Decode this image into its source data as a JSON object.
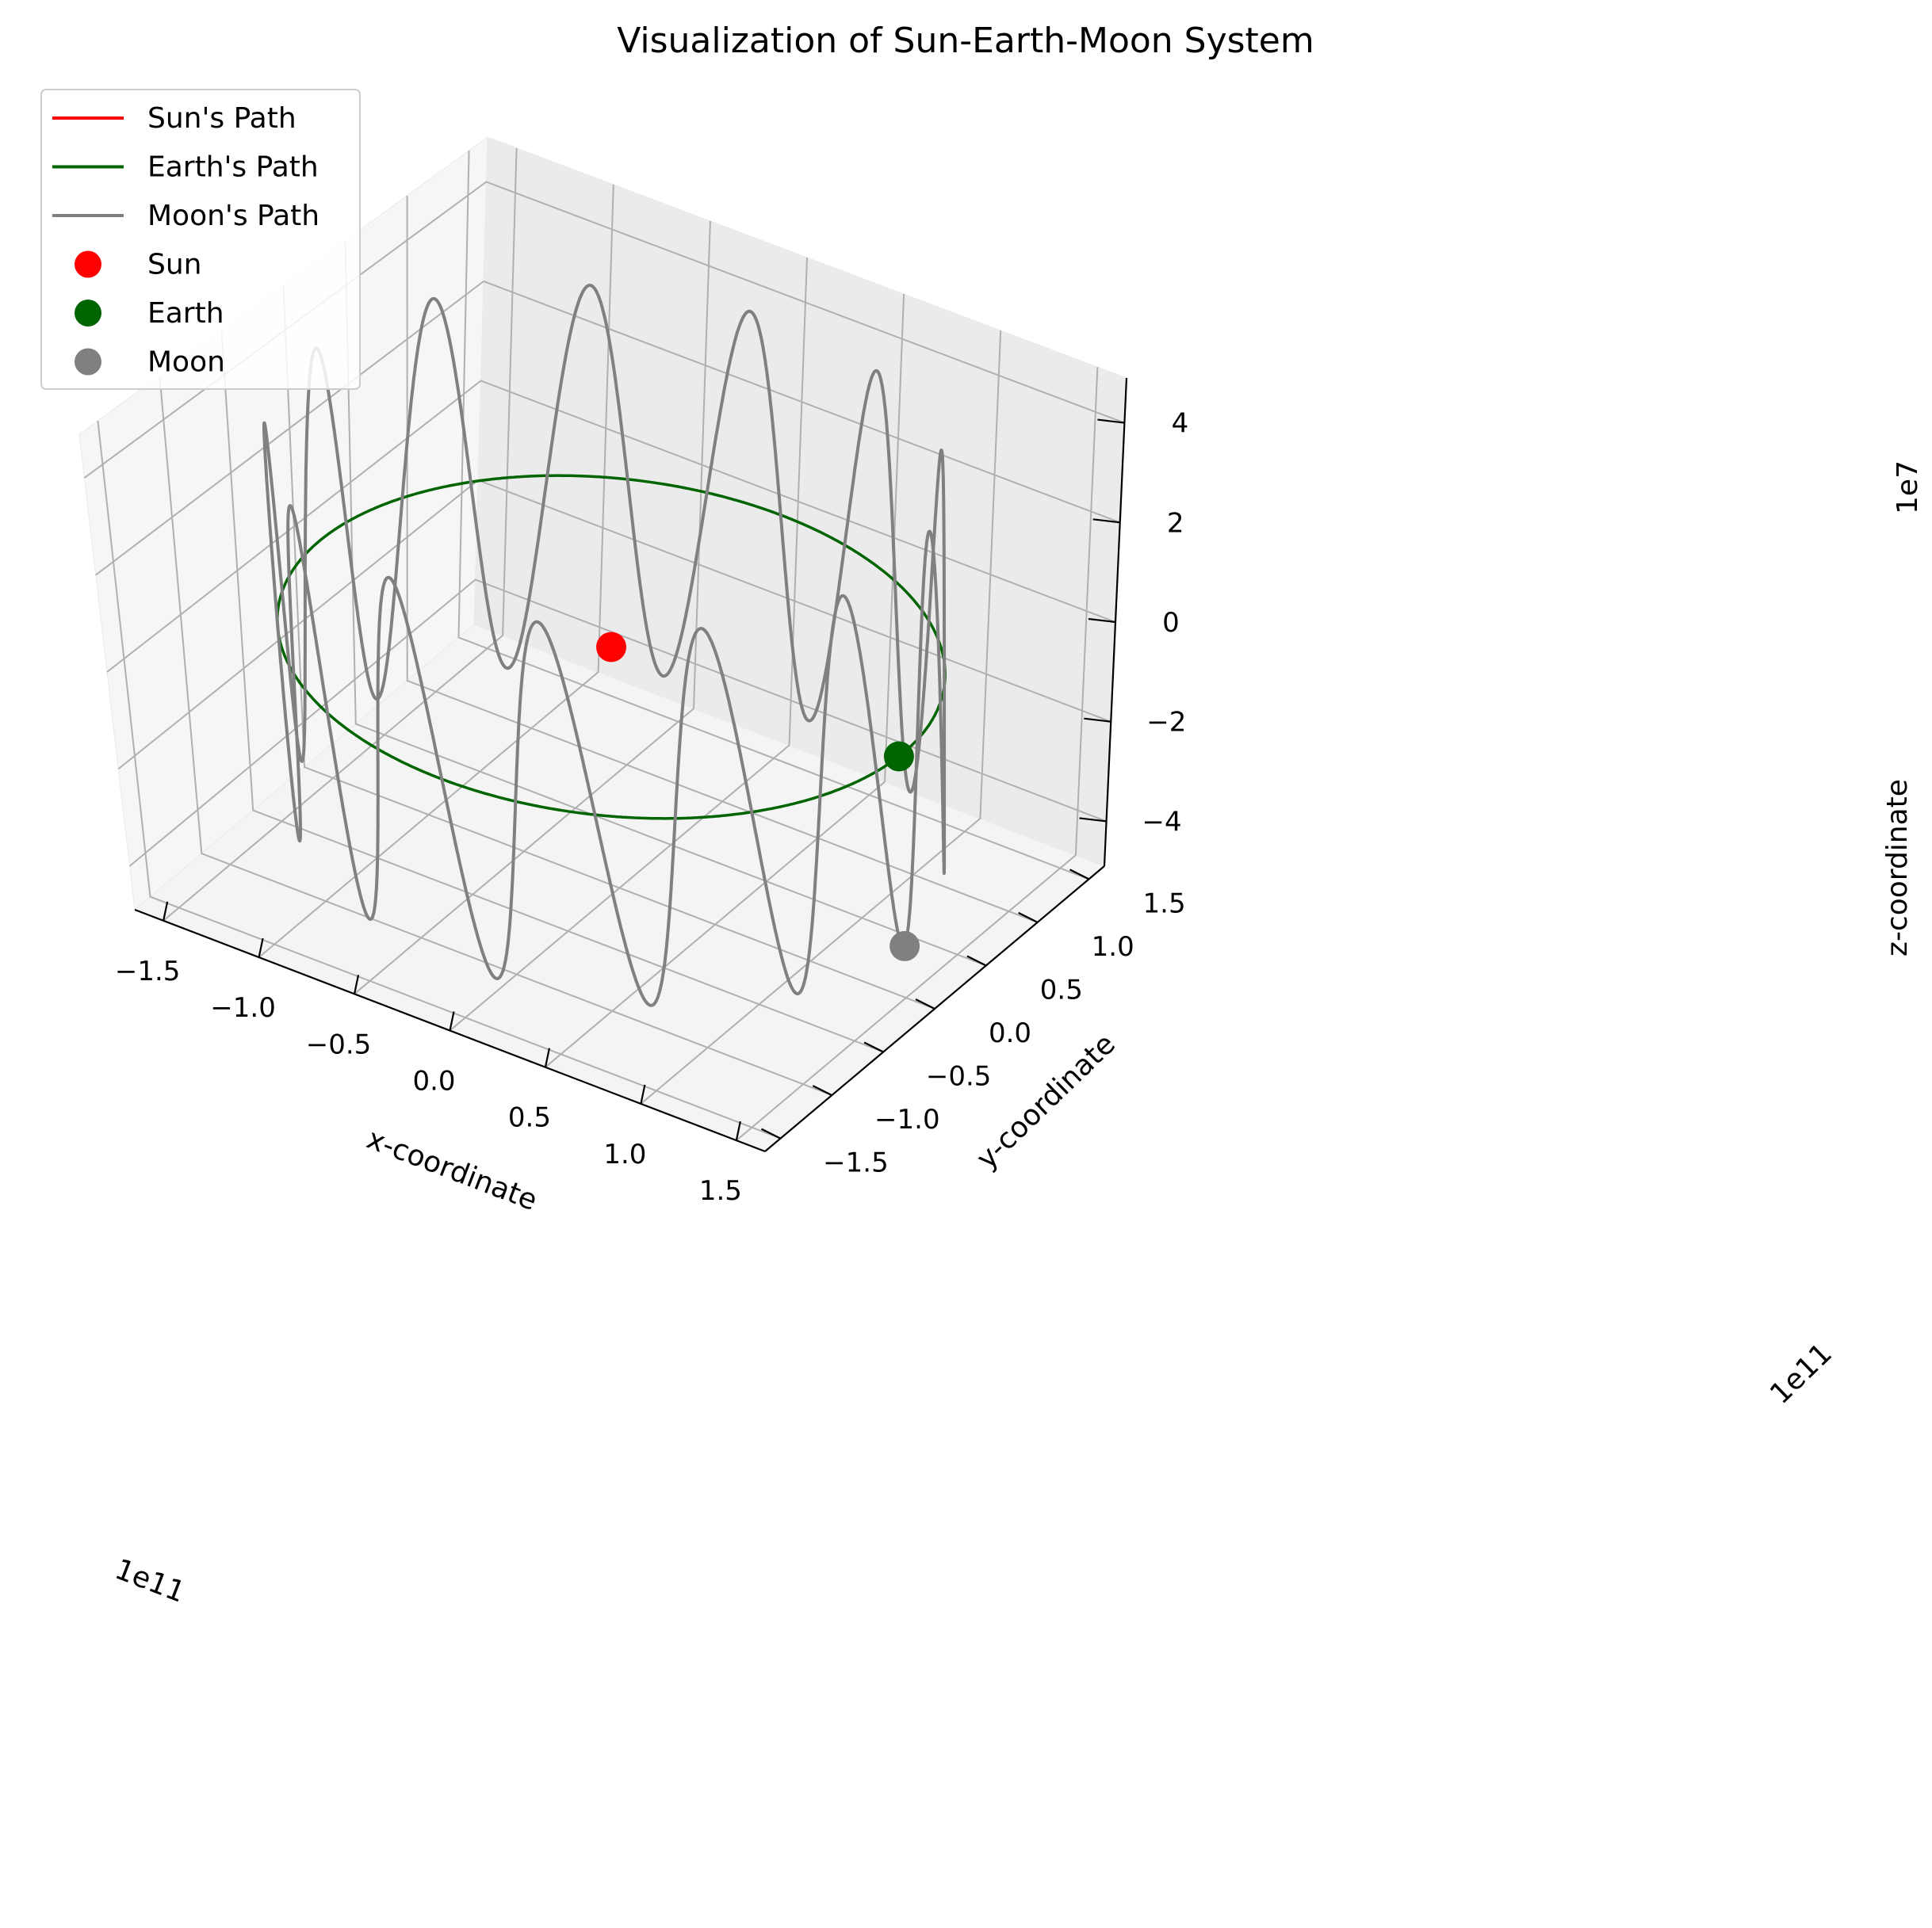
{
  "chart_data": {
    "type": "line3d",
    "title": "Visualization of Sun-Earth-Moon System",
    "xlabel": "x-coordinate",
    "ylabel": "y-coordinate",
    "zlabel": "z-coordinate",
    "x_offset": "1e11",
    "y_offset": "1e11",
    "z_offset": "1e7",
    "x_ticks": [
      -1.5,
      -1.0,
      -0.5,
      0.0,
      0.5,
      1.0,
      1.5
    ],
    "y_ticks": [
      -1.5,
      -1.0,
      -0.5,
      0.0,
      0.5,
      1.0,
      1.5
    ],
    "z_ticks": [
      -4,
      -2,
      0,
      2,
      4
    ],
    "x_tick_labels": [
      "−1.5",
      "−1.0",
      "−0.5",
      "0.0",
      "0.5",
      "1.0",
      "1.5"
    ],
    "y_tick_labels": [
      "−1.5",
      "−1.0",
      "−0.5",
      "0.0",
      "0.5",
      "1.0",
      "1.5"
    ],
    "z_tick_labels": [
      "−4",
      "−2",
      "0",
      "2",
      "4"
    ],
    "xlim": [
      -1.65,
      1.65
    ],
    "ylim": [
      -1.65,
      1.65
    ],
    "zlim": [
      -4.9,
      4.9
    ],
    "grid": true,
    "legend_position": "top-left",
    "series": [
      {
        "name": "Sun's Path",
        "color": "#ff0000",
        "kind": "line"
      },
      {
        "name": "Earth's Path",
        "color": "#006400",
        "kind": "line",
        "radius": 1.496,
        "z": 0
      },
      {
        "name": "Moon's Path",
        "color": "#808080",
        "kind": "line",
        "orbit_radius": 1.496,
        "z_amplitude": 3.85,
        "cycles_per_orbit": 13
      },
      {
        "name": "Sun",
        "color": "#ff0000",
        "kind": "point",
        "x": 0,
        "y": 0,
        "z": 0
      },
      {
        "name": "Earth",
        "color": "#006400",
        "kind": "point",
        "x": 1.496,
        "y": 0,
        "z": 0
      },
      {
        "name": "Moon",
        "color": "#808080",
        "kind": "point",
        "x": 1.5,
        "y": 0,
        "z": -3.85
      }
    ]
  }
}
